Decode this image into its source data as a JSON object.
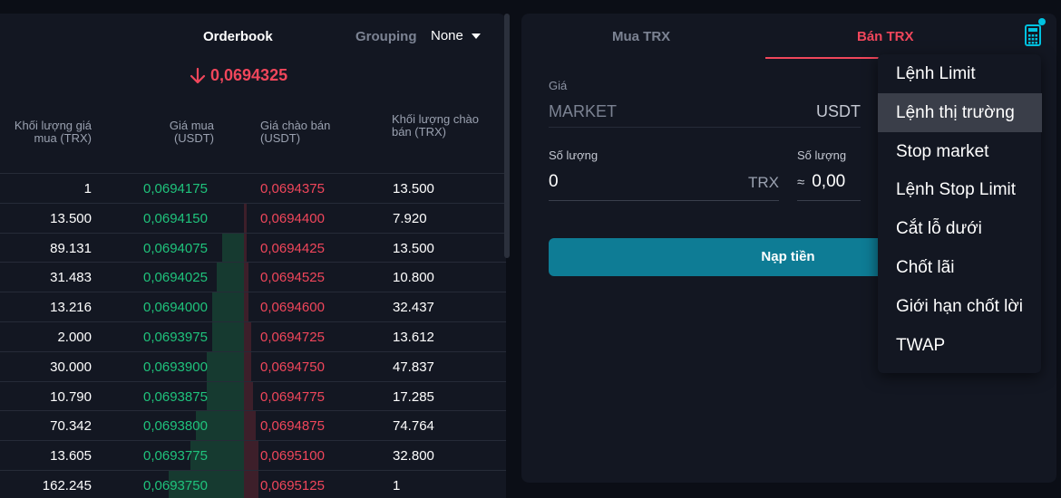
{
  "orderbook": {
    "title": "Orderbook",
    "grouping_label": "Grouping",
    "grouping_value": "None",
    "last_price": "0,0694325",
    "headers": {
      "bid_volume": "Khối lượng giá mua (TRX)",
      "bid_price": "Giá mua (USDT)",
      "ask_price": "Giá chào bán (USDT)",
      "ask_volume": "Khối lượng chào bán (TRX)"
    },
    "rows": [
      {
        "bid_vol": "1",
        "bid_price": "0,0694175",
        "ask_price": "0,0694375",
        "ask_vol": "13.500",
        "bid_depth": 0,
        "ask_depth": 0
      },
      {
        "bid_vol": "13.500",
        "bid_price": "0,0694150",
        "ask_price": "0,0694400",
        "ask_vol": "7.920",
        "bid_depth": 0,
        "ask_depth": 0.01
      },
      {
        "bid_vol": "89.131",
        "bid_price": "0,0694075",
        "ask_price": "0,0694425",
        "ask_vol": "13.500",
        "bid_depth": 0.04,
        "ask_depth": 0.01
      },
      {
        "bid_vol": "31.483",
        "bid_price": "0,0694025",
        "ask_price": "0,0694525",
        "ask_vol": "10.800",
        "bid_depth": 0.05,
        "ask_depth": 0.02
      },
      {
        "bid_vol": "13.216",
        "bid_price": "0,0694000",
        "ask_price": "0,0694600",
        "ask_vol": "32.437",
        "bid_depth": 0.06,
        "ask_depth": 0.02
      },
      {
        "bid_vol": "2.000",
        "bid_price": "0,0693975",
        "ask_price": "0,0694725",
        "ask_vol": "13.612",
        "bid_depth": 0.06,
        "ask_depth": 0.03
      },
      {
        "bid_vol": "30.000",
        "bid_price": "0,0693900",
        "ask_price": "0,0694750",
        "ask_vol": "47.837",
        "bid_depth": 0.07,
        "ask_depth": 0.03
      },
      {
        "bid_vol": "10.790",
        "bid_price": "0,0693875",
        "ask_price": "0,0694775",
        "ask_vol": "17.285",
        "bid_depth": 0.07,
        "ask_depth": 0.04
      },
      {
        "bid_vol": "70.342",
        "bid_price": "0,0693800",
        "ask_price": "0,0694875",
        "ask_vol": "74.764",
        "bid_depth": 0.09,
        "ask_depth": 0.05
      },
      {
        "bid_vol": "13.605",
        "bid_price": "0,0693775",
        "ask_price": "0,0695100",
        "ask_vol": "32.800",
        "bid_depth": 0.1,
        "ask_depth": 0.06
      },
      {
        "bid_vol": "162.245",
        "bid_price": "0,0693750",
        "ask_price": "0,0695125",
        "ask_vol": "1",
        "bid_depth": 0.14,
        "ask_depth": 0.06
      }
    ]
  },
  "trade": {
    "tab_buy": "Mua TRX",
    "tab_sell": "Bán TRX",
    "price_label": "Giá",
    "price_value": "MARKET",
    "price_unit": "USDT",
    "qty_label": "Số lượng",
    "qty_value": "0",
    "qty_unit": "TRX",
    "qty2_label": "Số lượng",
    "qty2_approx": "≈",
    "qty2_value": "0,00",
    "deposit_button": "Nạp tiền",
    "icons": {
      "calculator": "calculator-icon",
      "arrow": "arrow-down-icon"
    }
  },
  "menu": {
    "items": [
      "Lệnh Limit",
      "Lệnh thị trường",
      "Stop market",
      "Lệnh Stop Limit",
      "Cắt lỗ dưới",
      "Chốt lãi",
      "Giới hạn chốt lời",
      "TWAP"
    ],
    "active_index": 1
  },
  "colors": {
    "accent_red": "#f0465b",
    "accent_green": "#1fc37c",
    "button": "#0e7c95"
  }
}
